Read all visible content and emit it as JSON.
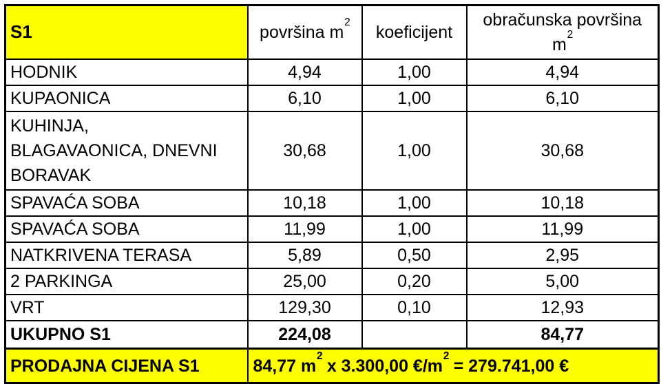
{
  "table": {
    "title": "S1",
    "headers": {
      "area_text": "površina m",
      "area_sup": "2",
      "coef": "koeficijent",
      "calc_text": "obračunska površina\nm",
      "calc_sup": "2"
    },
    "rows": [
      {
        "name": "HODNIK",
        "area": "4,94",
        "coef": "1,00",
        "calc": "4,94"
      },
      {
        "name": "KUPAONICA",
        "area": "6,10",
        "coef": "1,00",
        "calc": "6,10"
      },
      {
        "name": "KUHINJA,\nBLAGAVAONICA, DNEVNI\nBORAVAK",
        "area": "30,68",
        "coef": "1,00",
        "calc": "30,68"
      },
      {
        "name": "SPAVAĆA SOBA",
        "area": "10,18",
        "coef": "1,00",
        "calc": "10,18"
      },
      {
        "name": "SPAVAĆA SOBA",
        "area": "11,99",
        "coef": "1,00",
        "calc": "11,99"
      },
      {
        "name": "NATKRIVENA TERASA",
        "area": "5,89",
        "coef": "0,50",
        "calc": "2,95"
      },
      {
        "name": "2 PARKINGA",
        "area": "25,00",
        "coef": "0,20",
        "calc": "5,00"
      },
      {
        "name": "VRT",
        "area": "129,30",
        "coef": "0,10",
        "calc": "12,93"
      }
    ],
    "total": {
      "label": "UKUPNO S1",
      "area": "224,08",
      "coef": "",
      "calc": "84,77"
    },
    "price": {
      "label": "PRODAJNA CIJENA S1",
      "formula_p1": "84,77 m",
      "formula_s1": "2",
      "formula_p2": " x 3.300,00 €/m",
      "formula_s2": "2",
      "formula_p3": " = 279.741,00 €"
    },
    "colors": {
      "highlight": "#ffff00",
      "border": "#000000",
      "text": "#000000",
      "background": "#ffffff"
    }
  }
}
